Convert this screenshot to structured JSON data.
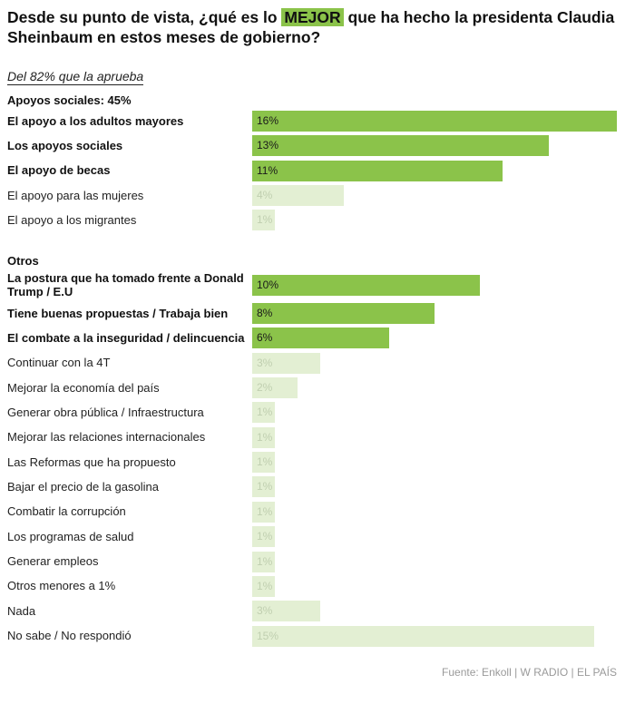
{
  "header": {
    "title_before": "Desde su punto de vista, ¿qué es lo ",
    "title_highlight": "MEJOR",
    "title_after": " que ha hecho la presidenta Claudia Sheinbaum en estos meses de gobierno?",
    "subtitle": "Del 82% que la aprueba"
  },
  "colors": {
    "strong": "#8bc34a",
    "light": "#e3efd3"
  },
  "chart_data": {
    "type": "bar",
    "orientation": "horizontal",
    "unit": "%",
    "xlim": [
      0,
      16
    ],
    "groups": [
      {
        "label": "Apoyos sociales: 45%",
        "rows": [
          {
            "label": "El apoyo a los adultos mayores",
            "value": 16,
            "value_label": "16%",
            "highlight": true
          },
          {
            "label": "Los apoyos sociales",
            "value": 13,
            "value_label": "13%",
            "highlight": true
          },
          {
            "label": "El apoyo de becas",
            "value": 11,
            "value_label": "11%",
            "highlight": true
          },
          {
            "label": "El apoyo para las mujeres",
            "value": 4,
            "value_label": "4%",
            "highlight": false
          },
          {
            "label": "El apoyo a los migrantes",
            "value": 1,
            "value_label": "1%",
            "highlight": false
          }
        ]
      },
      {
        "label": "Otros",
        "rows": [
          {
            "label": "La postura que ha tomado frente a Donald Trump / E.U",
            "value": 10,
            "value_label": "10%",
            "highlight": true
          },
          {
            "label": "Tiene buenas propuestas / Trabaja bien",
            "value": 8,
            "value_label": "8%",
            "highlight": true
          },
          {
            "label": "El combate a la inseguridad / delincuencia",
            "value": 6,
            "value_label": "6%",
            "highlight": true
          },
          {
            "label": "Continuar con la 4T",
            "value": 3,
            "value_label": "3%",
            "highlight": false
          },
          {
            "label": "Mejorar la economía del país",
            "value": 2,
            "value_label": "2%",
            "highlight": false
          },
          {
            "label": "Generar obra pública / Infraestructura",
            "value": 1,
            "value_label": "1%",
            "highlight": false
          },
          {
            "label": "Mejorar las relaciones internacionales",
            "value": 1,
            "value_label": "1%",
            "highlight": false
          },
          {
            "label": "Las Reformas que ha propuesto",
            "value": 1,
            "value_label": "1%",
            "highlight": false
          },
          {
            "label": "Bajar el precio de la gasolina",
            "value": 1,
            "value_label": "1%",
            "highlight": false
          },
          {
            "label": "Combatir la corrupción",
            "value": 1,
            "value_label": "1%",
            "highlight": false
          },
          {
            "label": "Los programas de salud",
            "value": 1,
            "value_label": "1%",
            "highlight": false
          },
          {
            "label": "Generar empleos",
            "value": 1,
            "value_label": "1%",
            "highlight": false
          },
          {
            "label": "Otros menores a 1%",
            "value": 1,
            "value_label": "1%",
            "highlight": false
          },
          {
            "label": "Nada",
            "value": 3,
            "value_label": "3%",
            "highlight": false
          },
          {
            "label": "No sabe / No respondió",
            "value": 15,
            "value_label": "15%",
            "highlight": false
          }
        ]
      }
    ]
  },
  "footer": {
    "source": "Fuente: Enkoll | W RADIO | EL PAÍS"
  }
}
